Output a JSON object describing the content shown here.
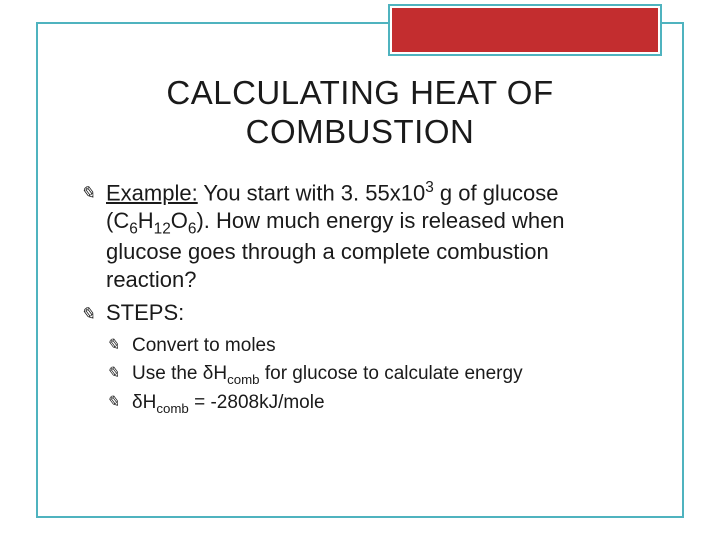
{
  "colors": {
    "frame_border": "#4fb3bf",
    "banner_bg": "#c32d2f",
    "banner_border_inner": "#ffffff",
    "text": "#1a1a1a",
    "bg": "#ffffff"
  },
  "title": {
    "line1": "CALCULATING HEAT OF",
    "line2": "COMBUSTION",
    "fontsize": 33
  },
  "bullets": {
    "b1_label": "Example:",
    "b1_text_a": "  You start with 3. 55x10",
    "b1_sup": "3",
    "b1_text_b": " g of glucose (C",
    "b1_s1": "6",
    "b1_text_c": "H",
    "b1_s2": "12",
    "b1_text_d": "O",
    "b1_s3": "6",
    "b1_text_e": ").  How much energy is released when glucose goes through a complete combustion reaction?",
    "b2": "STEPS:",
    "sub1": "Convert to moles",
    "sub2_a": "Use the δH",
    "sub2_sub": "comb",
    "sub2_b": " for glucose to calculate energy",
    "sub3_a": "δH",
    "sub3_sub": "comb",
    "sub3_b": " = -2808kJ/mole"
  },
  "bullet_glyph": "✎"
}
